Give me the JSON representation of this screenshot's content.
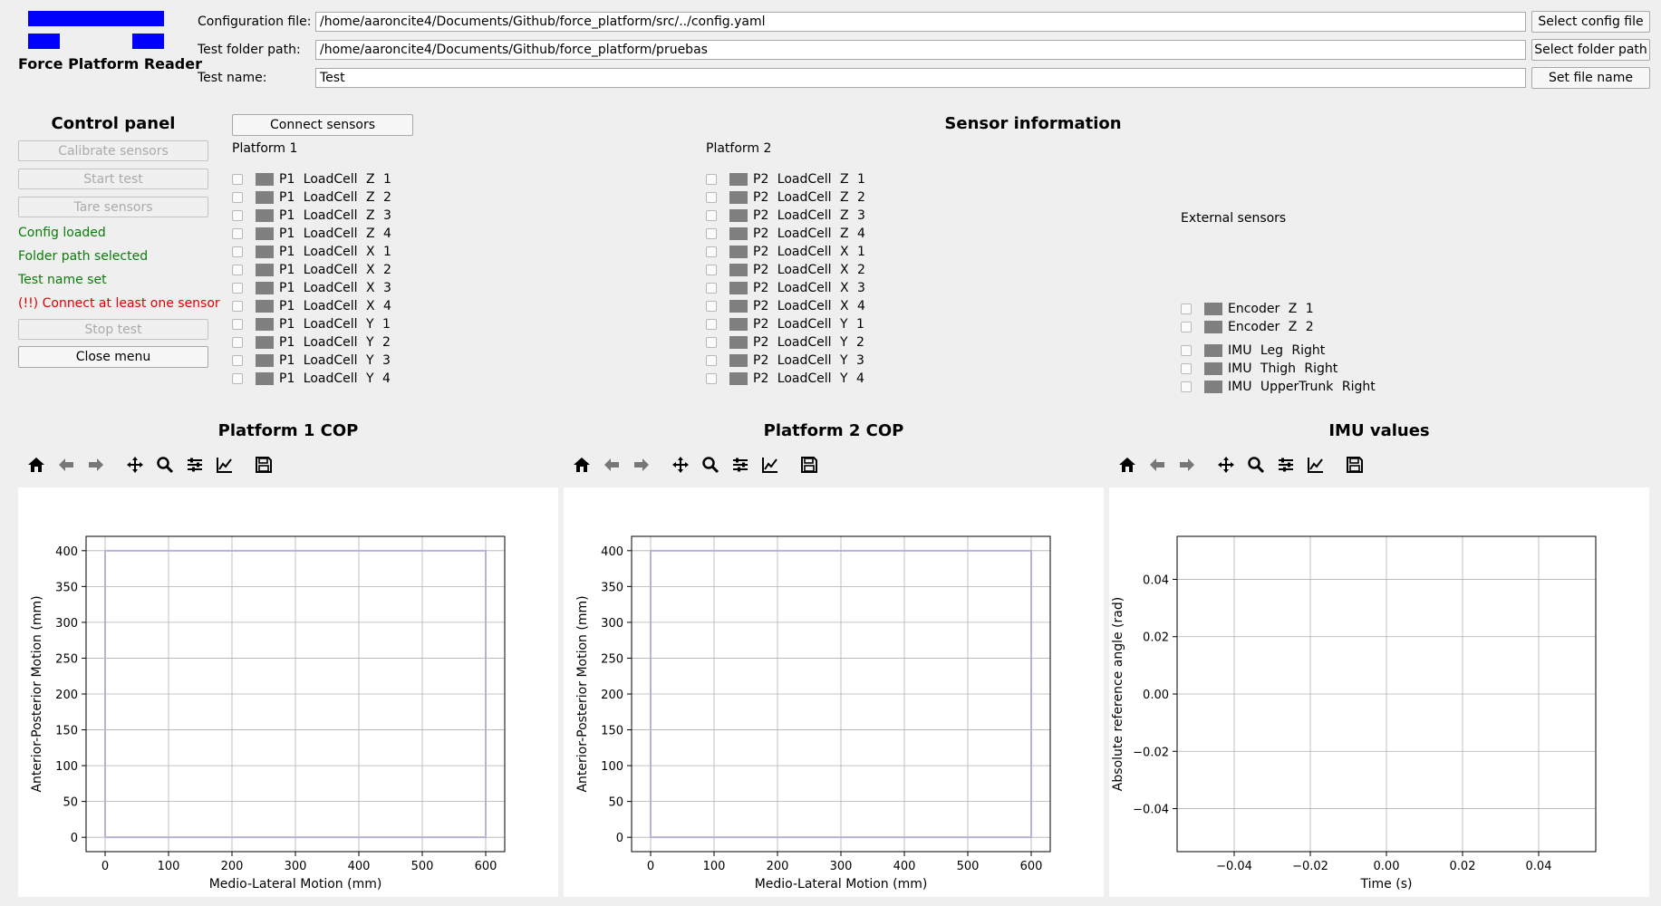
{
  "app": {
    "title": "Force Platform Reader",
    "logo_color": "#0000ff"
  },
  "header": {
    "config_label": "Configuration file:",
    "config_value": "/home/aaroncite4/Documents/Github/force_platform/src/../config.yaml",
    "config_button": "Select config file",
    "folder_label": "Test folder path:",
    "folder_value": "/home/aaroncite4/Documents/Github/force_platform/pruebas",
    "folder_button": "Select folder path",
    "name_label": "Test name:",
    "name_value": "Test",
    "name_button": "Set file name"
  },
  "control_panel": {
    "title": "Control panel",
    "calibrate": "Calibrate sensors",
    "start": "Start test",
    "tare": "Tare sensors",
    "status_config": "Config loaded",
    "status_folder": "Folder path selected",
    "status_name": "Test name set",
    "status_warning": "(!!) Connect at least one sensor",
    "stop": "Stop test",
    "close": "Close menu",
    "status_ok_color": "#0a7d0a",
    "status_warn_color": "#e00000"
  },
  "sensors": {
    "connect": "Connect sensors",
    "title": "Sensor information",
    "platform1_title": "Platform 1",
    "platform2_title": "Platform 2",
    "external_title": "External sensors",
    "platform1": [
      "P1 LoadCell Z 1",
      "P1 LoadCell Z 2",
      "P1 LoadCell Z 3",
      "P1 LoadCell Z 4",
      "P1 LoadCell X 1",
      "P1 LoadCell X 2",
      "P1 LoadCell X 3",
      "P1 LoadCell X 4",
      "P1 LoadCell Y 1",
      "P1 LoadCell Y 2",
      "P1 LoadCell Y 3",
      "P1 LoadCell Y 4"
    ],
    "platform2": [
      "P2 LoadCell Z 1",
      "P2 LoadCell Z 2",
      "P2 LoadCell Z 3",
      "P2 LoadCell Z 4",
      "P2 LoadCell X 1",
      "P2 LoadCell X 2",
      "P2 LoadCell X 3",
      "P2 LoadCell X 4",
      "P2 LoadCell Y 1",
      "P2 LoadCell Y 2",
      "P2 LoadCell Y 3",
      "P2 LoadCell Y 4"
    ],
    "external": [
      "Encoder Z 1",
      "Encoder Z 2",
      "IMU Leg Right",
      "IMU Thigh Right",
      "IMU UpperTrunk Right"
    ],
    "swatch_color": "#7f7f7f"
  },
  "toolbar_icons": [
    "home-icon",
    "back-icon",
    "forward-icon",
    "pan-icon",
    "zoom-icon",
    "configure-subplots-icon",
    "edit-axis-icon",
    "save-icon"
  ],
  "chart_data": [
    {
      "type": "line",
      "title": "Platform 1 COP",
      "xlabel": "Medio-Lateral Motion (mm)",
      "ylabel": "Anterior-Posterior Motion (mm)",
      "xlim": [
        -30,
        630
      ],
      "ylim": [
        -20,
        420
      ],
      "xticks": [
        0,
        100,
        200,
        300,
        400,
        500,
        600
      ],
      "yticks": [
        0,
        50,
        100,
        150,
        200,
        250,
        300,
        350,
        400
      ],
      "grid": true,
      "series": [
        {
          "x": [
            0,
            600,
            600,
            0,
            0
          ],
          "y": [
            0,
            0,
            400,
            400,
            0
          ],
          "color": "#b7b3d6"
        }
      ]
    },
    {
      "type": "line",
      "title": "Platform 2 COP",
      "xlabel": "Medio-Lateral Motion (mm)",
      "ylabel": "Anterior-Posterior Motion (mm)",
      "xlim": [
        -30,
        630
      ],
      "ylim": [
        -20,
        420
      ],
      "xticks": [
        0,
        100,
        200,
        300,
        400,
        500,
        600
      ],
      "yticks": [
        0,
        50,
        100,
        150,
        200,
        250,
        300,
        350,
        400
      ],
      "grid": true,
      "series": [
        {
          "x": [
            0,
            600,
            600,
            0,
            0
          ],
          "y": [
            0,
            0,
            400,
            400,
            0
          ],
          "color": "#b7b3d6"
        }
      ]
    },
    {
      "type": "line",
      "title": "IMU values",
      "xlabel": "Time (s)",
      "ylabel": "Absolute reference angle (rad)",
      "xlim": [
        -0.055,
        0.055
      ],
      "ylim": [
        -0.055,
        0.055
      ],
      "xticks": [
        -0.04,
        -0.02,
        0.0,
        0.02,
        0.04
      ],
      "yticks": [
        -0.04,
        -0.02,
        0.0,
        0.02,
        0.04
      ],
      "xtick_labels": [
        "−0.04",
        "−0.02",
        "0.00",
        "0.02",
        "0.04"
      ],
      "ytick_labels": [
        "−0.04",
        "−0.02",
        "0.00",
        "0.02",
        "0.04"
      ],
      "grid": true,
      "series": []
    }
  ]
}
